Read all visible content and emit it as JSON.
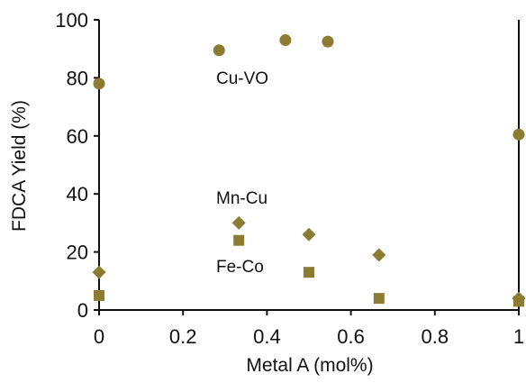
{
  "chart_data": {
    "type": "scatter",
    "xlabel": "Metal A (mol%)",
    "ylabel": "FDCA Yield (%)",
    "xlim": [
      0,
      1
    ],
    "ylim": [
      0,
      100
    ],
    "x_ticks": [
      "0",
      "0.2",
      "0.4",
      "0.6",
      "0.8",
      "1"
    ],
    "y_ticks": [
      "0",
      "20",
      "40",
      "60",
      "80",
      "100"
    ],
    "grid": false,
    "legend": "none",
    "series": [
      {
        "name": "Cu-VO",
        "marker": "circle",
        "color": "#8b7c32",
        "points": [
          [
            0.0,
            78
          ],
          [
            0.286,
            89.5
          ],
          [
            0.444,
            93
          ],
          [
            0.545,
            92.5
          ],
          [
            1.0,
            60.5
          ]
        ]
      },
      {
        "name": "Mn-Cu",
        "marker": "diamond",
        "color": "#8b7c32",
        "points": [
          [
            0.0,
            13
          ],
          [
            0.333,
            30
          ],
          [
            0.5,
            26
          ],
          [
            0.667,
            19
          ],
          [
            1.0,
            4
          ]
        ]
      },
      {
        "name": "Fe-Co",
        "marker": "square",
        "color": "#8b7c32",
        "points": [
          [
            0.0,
            5
          ],
          [
            0.333,
            24
          ],
          [
            0.5,
            13
          ],
          [
            0.667,
            4
          ],
          [
            1.0,
            3
          ]
        ]
      }
    ]
  }
}
